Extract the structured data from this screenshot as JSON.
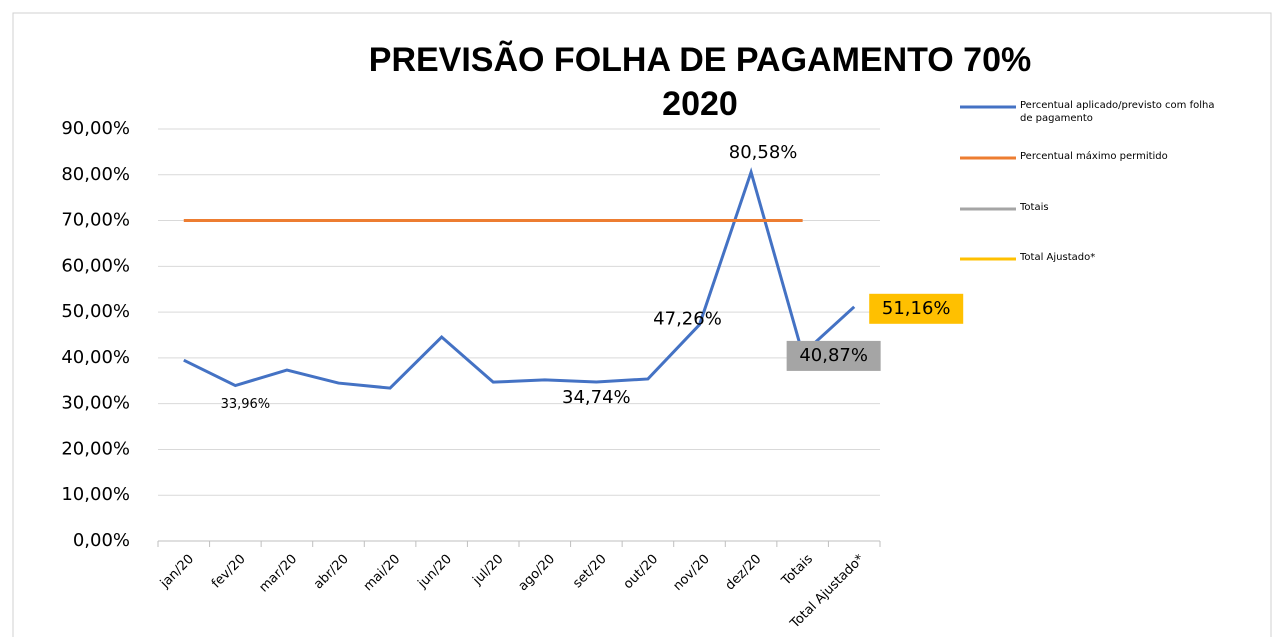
{
  "chart_data": {
    "type": "line",
    "title": "PREVISÃO FOLHA DE PAGAMENTO 70%",
    "subtitle": "2020",
    "categories": [
      "jan/20",
      "fev/20",
      "mar/20",
      "abr/20",
      "mai/20",
      "jun/20",
      "jul/20",
      "ago/20",
      "set/20",
      "out/20",
      "nov/20",
      "dez/20",
      "Totais",
      "Total Ajustado*"
    ],
    "series": [
      {
        "name": "Percentual aplicado/previsto com folha de pagamento",
        "color": "#4472c4",
        "values": [
          39.5,
          33.96,
          37.35,
          34.5,
          33.4,
          44.56,
          34.7,
          35.2,
          34.74,
          35.4,
          47.26,
          80.58,
          40.87,
          51.16
        ],
        "value_labels": [
          null,
          "33,96%",
          null,
          null,
          null,
          null,
          null,
          null,
          "34,74%",
          null,
          "47,26%",
          "80,58%",
          null,
          null
        ]
      },
      {
        "name": "Percentual máximo permitido",
        "color": "#ed7d31",
        "values": [
          70,
          70,
          70,
          70,
          70,
          70,
          70,
          70,
          70,
          70,
          70,
          70,
          70,
          null
        ]
      },
      {
        "name": "Totais",
        "color": "#a5a5a5",
        "values": [
          null,
          null,
          null,
          null,
          null,
          null,
          null,
          null,
          null,
          null,
          null,
          null,
          40.87,
          null
        ],
        "value_labels": [
          null,
          null,
          null,
          null,
          null,
          null,
          null,
          null,
          null,
          null,
          null,
          null,
          "40,87%",
          null
        ]
      },
      {
        "name": "Total Ajustado*",
        "color": "#ffc000",
        "values": [
          null,
          null,
          null,
          null,
          null,
          null,
          null,
          null,
          null,
          null,
          null,
          null,
          null,
          51.16
        ],
        "value_labels": [
          null,
          null,
          null,
          null,
          null,
          null,
          null,
          null,
          null,
          null,
          null,
          null,
          null,
          "51,16%"
        ]
      }
    ],
    "ylim": [
      0,
      90
    ],
    "yticks": [
      {
        "value": 0,
        "label": "0,00%"
      },
      {
        "value": 10,
        "label": "10,00%"
      },
      {
        "value": 20,
        "label": "20,00%"
      },
      {
        "value": 30,
        "label": "30,00%"
      },
      {
        "value": 40,
        "label": "40,00%"
      },
      {
        "value": 50,
        "label": "50,00%"
      },
      {
        "value": 60,
        "label": "60,00%"
      },
      {
        "value": 70,
        "label": "70,00%"
      },
      {
        "value": 80,
        "label": "80,00%"
      },
      {
        "value": 90,
        "label": "90,00%"
      }
    ],
    "grid": true,
    "legend": "right"
  }
}
